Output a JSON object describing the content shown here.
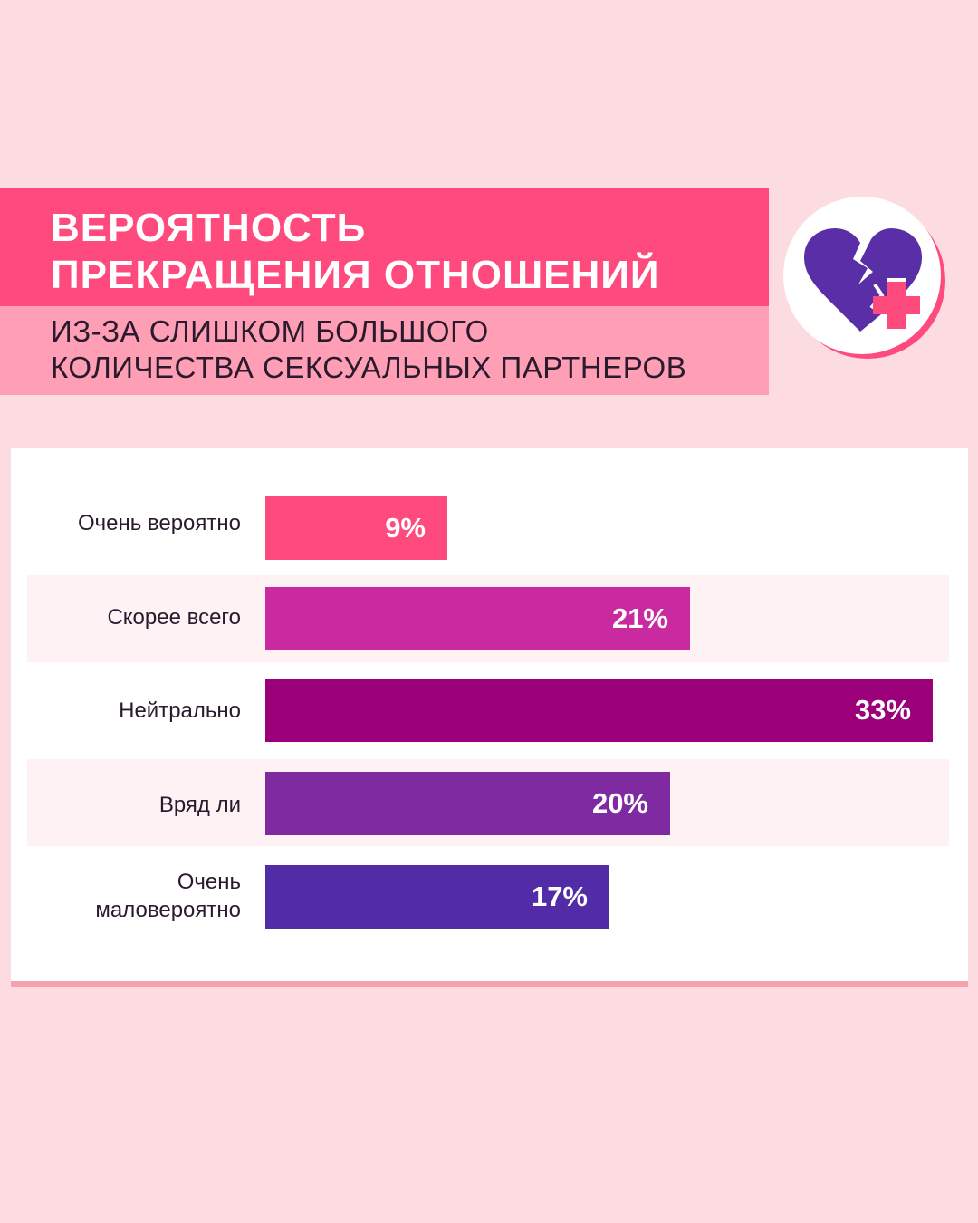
{
  "header": {
    "title_lines": [
      "ВЕРОЯТНОСТЬ",
      "ПРЕКРАЩЕНИЯ ОТНОШЕНИЙ"
    ],
    "subtitle_lines": [
      "ИЗ-ЗА СЛИШКОМ БОЛЬШОГО",
      "КОЛИЧЕСТВА СЕКСУАЛЬНЫХ ПАРТНЕРОВ"
    ],
    "title_color": "#ff4a7e",
    "subtitle_color": "#ff9fb5"
  },
  "badge": {
    "icon": "broken-heart-plus-icon",
    "heart_color": "#5a2ea6",
    "plus_color": "#ff4a7e"
  },
  "chart_data": {
    "type": "bar",
    "orientation": "horizontal",
    "categories": [
      "Очень вероятно",
      "Скорее всего",
      "Нейтрально",
      "Вряд ли",
      "Очень маловероятно"
    ],
    "values": [
      9,
      21,
      33,
      20,
      17
    ],
    "value_labels": [
      "9%",
      "21%",
      "33%",
      "20%",
      "17%"
    ],
    "colors": [
      "#ff4a7e",
      "#c92a9f",
      "#9b007a",
      "#7f2aa1",
      "#522ca6"
    ],
    "unit": "%"
  }
}
